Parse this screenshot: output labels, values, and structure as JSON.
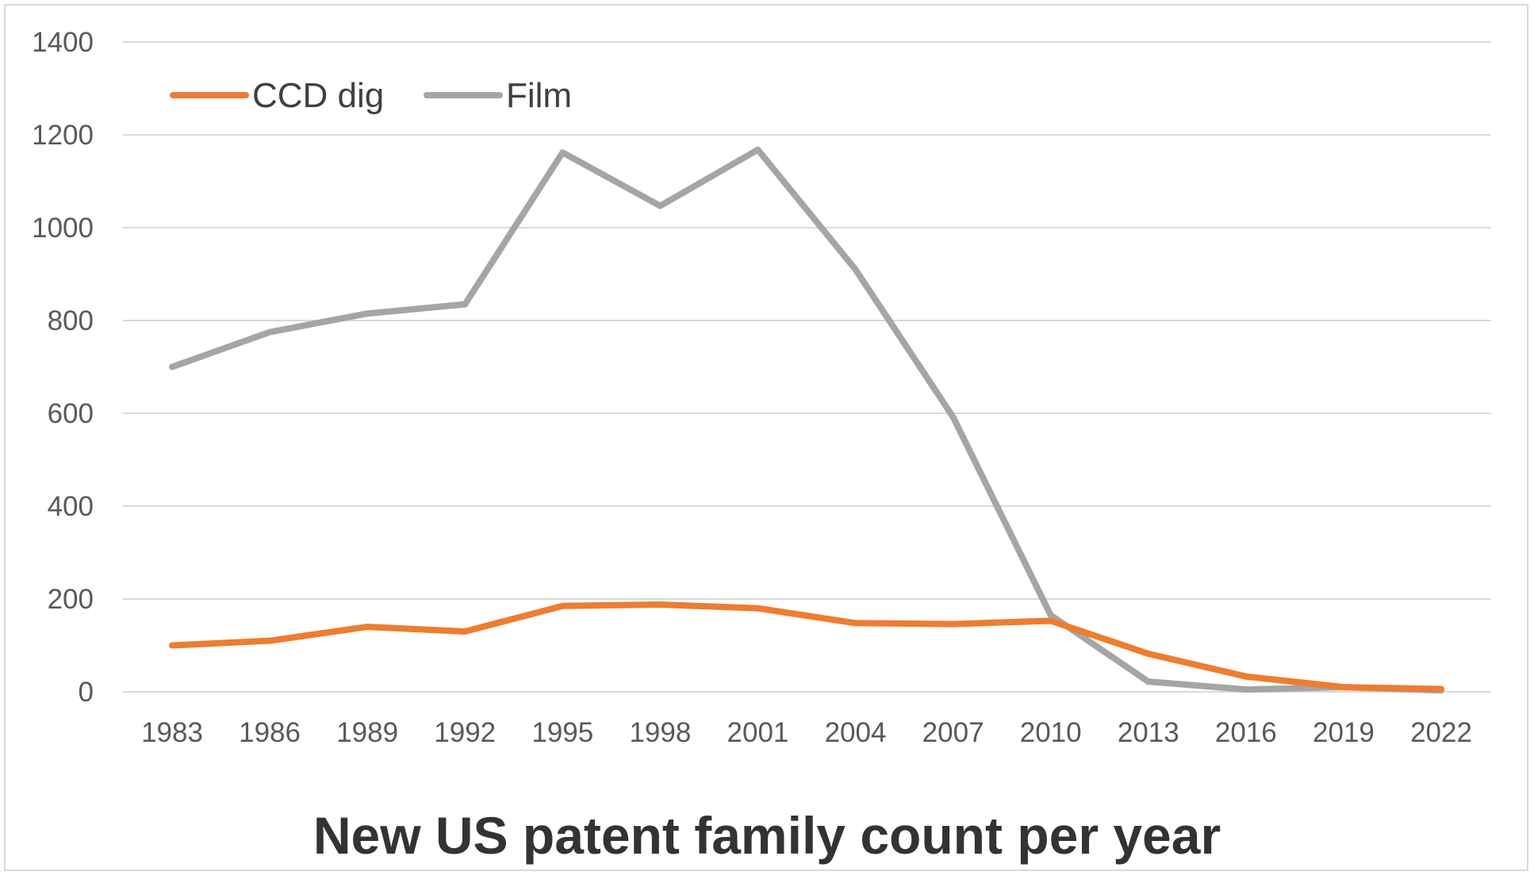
{
  "chart_data": {
    "type": "line",
    "title": "New US patent family count per year",
    "xlabel": "",
    "ylabel": "",
    "categories": [
      "1983",
      "1986",
      "1989",
      "1992",
      "1995",
      "1998",
      "2001",
      "2004",
      "2007",
      "2010",
      "2013",
      "2016",
      "2019",
      "2022"
    ],
    "yticks": [
      "0",
      "200",
      "400",
      "600",
      "800",
      "1000",
      "1200",
      "1400"
    ],
    "ylim": [
      0,
      1400
    ],
    "grid": true,
    "legend_position": "top-left",
    "series": [
      {
        "name": "CCD dig",
        "color": "#ED7D31",
        "values": [
          100,
          110,
          140,
          130,
          185,
          188,
          180,
          148,
          146,
          153,
          82,
          33,
          10,
          6
        ]
      },
      {
        "name": "Film",
        "color": "#A5A5A5",
        "values": [
          700,
          775,
          815,
          835,
          1162,
          1047,
          1168,
          910,
          592,
          165,
          22,
          5,
          10,
          3
        ]
      }
    ]
  }
}
